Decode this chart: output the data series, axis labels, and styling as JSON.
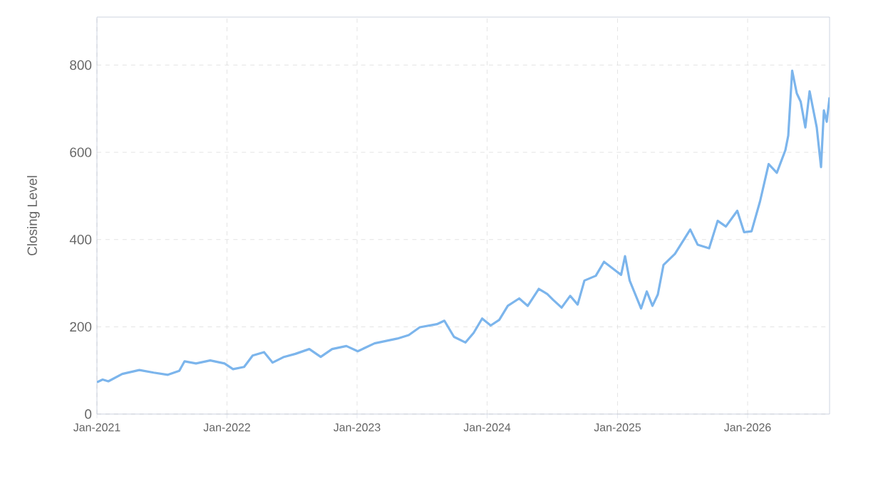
{
  "chart_data": {
    "type": "line",
    "ylabel": "Closing Level",
    "xlim": [
      "2021-01-01",
      "2026-08-19"
    ],
    "ylim": [
      0,
      910
    ],
    "yticks": [
      0,
      200,
      400,
      600,
      800
    ],
    "xticks": [
      {
        "value": "2021-01-01",
        "label": "Jan-2021"
      },
      {
        "value": "2022-01-01",
        "label": "Jan-2022"
      },
      {
        "value": "2023-01-01",
        "label": "Jan-2023"
      },
      {
        "value": "2024-01-01",
        "label": "Jan-2024"
      },
      {
        "value": "2025-01-01",
        "label": "Jan-2025"
      },
      {
        "value": "2026-01-01",
        "label": "Jan-2026"
      }
    ],
    "grid": true,
    "series": [
      {
        "color": "#7cb5ec",
        "x": [
          "2021-01-01",
          "2021-01-17",
          "2021-02-02",
          "2021-03-13",
          "2021-04-30",
          "2021-06-09",
          "2021-07-19",
          "2021-08-20",
          "2021-09-04",
          "2021-10-06",
          "2021-11-15",
          "2021-12-25",
          "2022-01-18",
          "2022-02-18",
          "2022-03-14",
          "2022-04-15",
          "2022-05-09",
          "2022-06-10",
          "2022-07-12",
          "2022-08-20",
          "2022-09-21",
          "2022-10-23",
          "2022-12-02",
          "2023-01-03",
          "2023-02-19",
          "2023-04-24",
          "2023-05-26",
          "2023-06-26",
          "2023-08-13",
          "2023-09-03",
          "2023-09-30",
          "2023-11-01",
          "2023-11-24",
          "2023-12-18",
          "2024-01-11",
          "2024-02-04",
          "2024-02-28",
          "2024-03-31",
          "2024-04-24",
          "2024-05-25",
          "2024-06-18",
          "2024-07-04",
          "2024-07-28",
          "2024-08-21",
          "2024-09-11",
          "2024-09-30",
          "2024-11-01",
          "2024-11-24",
          "2024-12-26",
          "2025-01-11",
          "2025-01-22",
          "2025-02-04",
          "2025-03-08",
          "2025-03-24",
          "2025-04-09",
          "2025-04-24",
          "2025-05-10",
          "2025-06-11",
          "2025-07-24",
          "2025-08-14",
          "2025-09-15",
          "2025-10-09",
          "2025-11-01",
          "2025-12-03",
          "2025-12-22",
          "2026-01-12",
          "2026-02-05",
          "2026-03-01",
          "2026-03-24",
          "2026-04-17",
          "2026-04-25",
          "2026-05-06",
          "2026-05-19",
          "2026-05-30",
          "2026-06-12",
          "2026-06-24",
          "2026-07-14",
          "2026-07-26",
          "2026-08-03",
          "2026-08-11",
          "2026-08-19"
        ],
        "values": [
          73,
          79,
          75,
          92,
          101,
          95,
          90,
          99,
          121,
          116,
          123,
          116,
          103,
          108,
          134,
          142,
          118,
          131,
          138,
          149,
          131,
          149,
          156,
          144,
          162,
          173,
          181,
          199,
          206,
          214,
          177,
          164,
          186,
          219,
          203,
          216,
          248,
          265,
          248,
          287,
          275,
          262,
          244,
          271,
          251,
          306,
          317,
          349,
          329,
          319,
          362,
          306,
          242,
          281,
          248,
          274,
          342,
          367,
          423,
          388,
          380,
          443,
          430,
          466,
          417,
          419,
          488,
          573,
          553,
          605,
          638,
          787,
          735,
          716,
          657,
          740,
          657,
          566,
          696,
          670,
          726
        ]
      }
    ]
  }
}
